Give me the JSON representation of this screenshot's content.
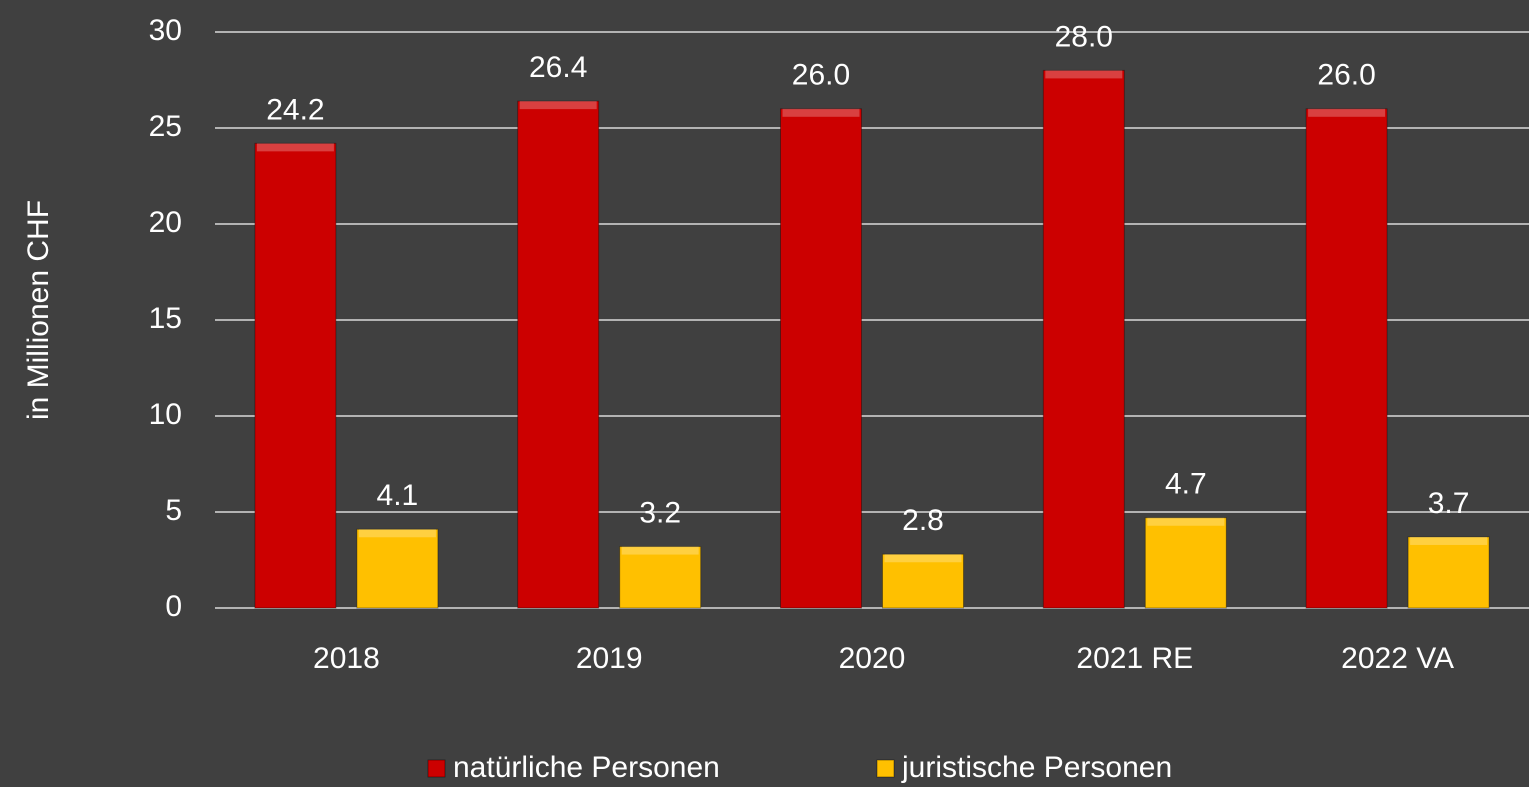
{
  "chart_data": {
    "type": "bar",
    "y_label": "in Millionen CHF",
    "categories": [
      "2018",
      "2019",
      "2020",
      "2021 RE",
      "2022 VA"
    ],
    "series": [
      {
        "name": "natürliche Personen",
        "color": "#cc0000",
        "values": [
          24.2,
          26.4,
          26.0,
          28.0,
          26.0
        ],
        "value_labels": [
          "24.2",
          "26.4",
          "26.0",
          "28.0",
          "26.0"
        ]
      },
      {
        "name": "juristische Personen",
        "color": "#ffc000",
        "values": [
          4.1,
          3.2,
          2.8,
          4.7,
          3.7
        ],
        "value_labels": [
          "4.1",
          "3.2",
          "2.8",
          "4.7",
          "3.7"
        ]
      }
    ],
    "ylim": [
      0,
      30
    ],
    "yticks": [
      0,
      5,
      10,
      15,
      20,
      25,
      30
    ],
    "grid": true,
    "legend": "bottom"
  }
}
